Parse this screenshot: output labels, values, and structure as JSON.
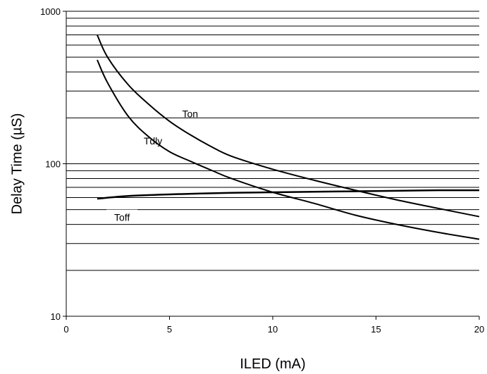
{
  "chart_data": {
    "type": "line",
    "xlabel": "ILED (mA)",
    "ylabel": "Delay Time (µS)",
    "xlim": [
      0,
      20
    ],
    "ylim": [
      10,
      1000
    ],
    "y_scale": "log",
    "x_ticks": [
      "0",
      "5",
      "10",
      "15",
      "20"
    ],
    "y_ticks": [
      "10",
      "100",
      "1000"
    ],
    "grid": {
      "major_y": true,
      "minor_y": true
    },
    "series": [
      {
        "name": "Ton",
        "x": [
          1.5,
          2,
          3,
          4,
          5,
          6,
          7,
          8,
          10,
          12,
          14,
          16,
          18,
          20
        ],
        "y": [
          700,
          500,
          330,
          245,
          190,
          155,
          130,
          112,
          92,
          78,
          67,
          58,
          51,
          45
        ]
      },
      {
        "name": "Tdly",
        "x": [
          1.5,
          2,
          3,
          4,
          5,
          6,
          7,
          8,
          10,
          12,
          14,
          16,
          18,
          20
        ],
        "y": [
          480,
          340,
          205,
          150,
          120,
          104,
          91,
          80,
          65,
          55,
          46,
          40,
          35.5,
          32
        ]
      },
      {
        "name": "Toff",
        "x": [
          1.5,
          3,
          5,
          8,
          10,
          12,
          14,
          16,
          18,
          20
        ],
        "y": [
          59,
          61.5,
          63,
          64.5,
          65,
          65.5,
          66,
          66.5,
          67,
          67
        ]
      }
    ],
    "series_labels": [
      "Ton",
      "Tdly",
      "Toff"
    ]
  }
}
